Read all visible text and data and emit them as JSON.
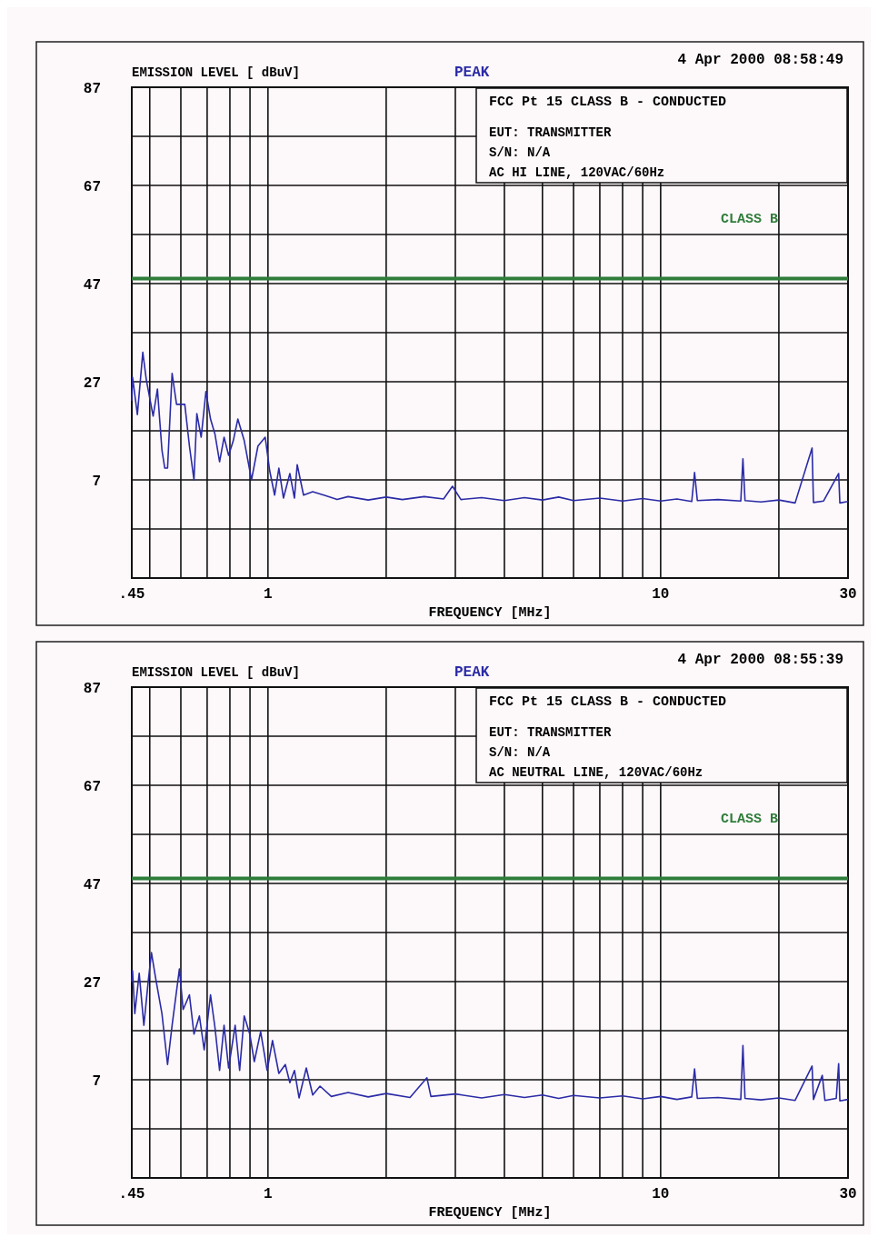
{
  "chart_data": [
    {
      "type": "line",
      "title": "4 Apr 2000   08:58:49",
      "ylabel": "EMISSION LEVEL [ dBuV]",
      "xlabel": "FREQUENCY [MHz]",
      "annotations": [
        "PEAK",
        "FCC Pt 15 CLASS B - CONDUCTED",
        "EUT: TRANSMITTER",
        "S/N: N/A",
        "AC HI LINE,     120VAC/60Hz"
      ],
      "log": "x",
      "grid": true,
      "xlim": [
        0.45,
        30
      ],
      "ylim": [
        -13,
        87
      ],
      "xticks": [
        {
          "value": 0.45,
          "label": ".45"
        },
        {
          "value": 0.5,
          "label": null
        },
        {
          "value": 0.6,
          "label": null
        },
        {
          "value": 0.7,
          "label": null
        },
        {
          "value": 0.8,
          "label": null
        },
        {
          "value": 0.9,
          "label": null
        },
        1,
        {
          "value": 2,
          "label": null
        },
        {
          "value": 3,
          "label": null
        },
        {
          "value": 4,
          "label": null
        },
        {
          "value": 5,
          "label": null
        },
        {
          "value": 6,
          "label": null
        },
        {
          "value": 7,
          "label": null
        },
        {
          "value": 8,
          "label": null
        },
        {
          "value": 9,
          "label": null
        },
        10,
        {
          "value": 20,
          "label": null
        },
        30
      ],
      "yticks": [
        {
          "value": -3,
          "label": null
        },
        7,
        {
          "value": 17,
          "label": null
        },
        27,
        {
          "value": 37,
          "label": null
        },
        47,
        {
          "value": 57,
          "label": null
        },
        67,
        {
          "value": 77,
          "label": null
        },
        87
      ],
      "ref_lines": [
        {
          "axis": "y",
          "value": 48,
          "label": "CLASS B",
          "color": "#2e7d3a"
        }
      ],
      "series": [
        {
          "color": "#2b2ba6",
          "x": [
            0.45,
            0.452,
            0.465,
            0.48,
            0.49,
            0.51,
            0.523,
            0.537,
            0.546,
            0.555,
            0.57,
            0.585,
            0.614,
            0.631,
            0.648,
            0.659,
            0.676,
            0.695,
            0.714,
            0.733,
            0.753,
            0.773,
            0.794,
            0.816,
            0.838,
            0.87,
            0.908,
            0.943,
            0.984,
            1.01,
            1.04,
            1.066,
            1.095,
            1.137,
            1.168,
            1.187,
            1.232,
            1.3,
            1.4,
            1.5,
            1.6,
            1.8,
            2.0,
            2.2,
            2.5,
            2.8,
            2.95,
            3.1,
            3.5,
            4,
            4.5,
            5,
            5.5,
            6,
            7,
            8,
            9,
            10,
            11,
            12,
            12.2,
            12.4,
            14,
            16,
            16.2,
            16.4,
            18,
            20,
            22,
            24.3,
            24.5,
            26,
            28.4,
            28.6,
            30
          ],
          "values": [
            23.1,
            27.9,
            20.3,
            33,
            27.4,
            20,
            25.5,
            13.1,
            9.4,
            9.4,
            28.7,
            22.4,
            22.4,
            13.9,
            7,
            20.5,
            15.7,
            25,
            19.4,
            16.3,
            10.7,
            15.7,
            12,
            15,
            19.4,
            15,
            7,
            13.9,
            15.7,
            8.9,
            3.9,
            9.4,
            3.3,
            8.3,
            3.3,
            10.1,
            3.9,
            4.6,
            3.8,
            3.0,
            3.6,
            2.9,
            3.5,
            3.0,
            3.6,
            3.1,
            5.7,
            3.0,
            3.4,
            2.8,
            3.4,
            2.9,
            3.5,
            2.8,
            3.3,
            2.7,
            3.2,
            2.7,
            3.1,
            2.6,
            8.5,
            2.8,
            3.0,
            2.7,
            11.3,
            2.8,
            2.5,
            2.9,
            2.3,
            13.5,
            2.4,
            2.7,
            8.3,
            2.3,
            2.6
          ]
        }
      ]
    },
    {
      "type": "line",
      "title": "4 Apr 2000   08:55:39",
      "ylabel": "EMISSION LEVEL [ dBuV]",
      "xlabel": "FREQUENCY [MHz]",
      "annotations": [
        "PEAK",
        "FCC Pt 15 CLASS B - CONDUCTED",
        "EUT: TRANSMITTER",
        "S/N: N/A",
        "AC NEUTRAL LINE, 120VAC/60Hz"
      ],
      "log": "x",
      "grid": true,
      "xlim": [
        0.45,
        30
      ],
      "ylim": [
        -13,
        87
      ],
      "xticks": [
        {
          "value": 0.45,
          "label": ".45"
        },
        {
          "value": 0.5,
          "label": null
        },
        {
          "value": 0.6,
          "label": null
        },
        {
          "value": 0.7,
          "label": null
        },
        {
          "value": 0.8,
          "label": null
        },
        {
          "value": 0.9,
          "label": null
        },
        1,
        {
          "value": 2,
          "label": null
        },
        {
          "value": 3,
          "label": null
        },
        {
          "value": 4,
          "label": null
        },
        {
          "value": 5,
          "label": null
        },
        {
          "value": 6,
          "label": null
        },
        {
          "value": 7,
          "label": null
        },
        {
          "value": 8,
          "label": null
        },
        {
          "value": 9,
          "label": null
        },
        10,
        {
          "value": 20,
          "label": null
        },
        30
      ],
      "yticks": [
        {
          "value": -3,
          "label": null
        },
        7,
        {
          "value": 17,
          "label": null
        },
        27,
        {
          "value": 37,
          "label": null
        },
        47,
        {
          "value": 57,
          "label": null
        },
        67,
        {
          "value": 77,
          "label": null
        },
        87
      ],
      "ref_lines": [
        {
          "axis": "y",
          "value": 48,
          "label": "CLASS B",
          "color": "#2e7d3a"
        }
      ],
      "series": [
        {
          "color": "#2b2ba6",
          "x": [
            0.45,
            0.452,
            0.458,
            0.47,
            0.483,
            0.496,
            0.505,
            0.517,
            0.537,
            0.555,
            0.57,
            0.595,
            0.608,
            0.631,
            0.648,
            0.669,
            0.688,
            0.714,
            0.733,
            0.753,
            0.773,
            0.794,
            0.825,
            0.847,
            0.87,
            0.899,
            0.923,
            0.958,
            0.995,
            1.027,
            1.066,
            1.107,
            1.137,
            1.168,
            1.2,
            1.252,
            1.3,
            1.357,
            1.45,
            1.6,
            1.8,
            2.0,
            2.3,
            2.54,
            2.6,
            3,
            3.5,
            4,
            4.5,
            5,
            5.5,
            6,
            7,
            8,
            9,
            10,
            11,
            12,
            12.2,
            12.4,
            14,
            16,
            16.2,
            16.4,
            18,
            20,
            22,
            24.3,
            24.5,
            25.8,
            26.2,
            28,
            28.4,
            28.6,
            30
          ],
          "values": [
            27,
            29.2,
            20.5,
            28.7,
            18.1,
            27.4,
            32.9,
            27.9,
            20.5,
            10.1,
            18.1,
            29.6,
            21.3,
            24.3,
            16.3,
            20,
            13.1,
            24.3,
            17.6,
            8.9,
            18.1,
            9.4,
            18.1,
            8.9,
            20,
            16.3,
            10.7,
            16.8,
            8.9,
            15,
            8.3,
            10.1,
            6.4,
            8.9,
            3.3,
            9.4,
            3.9,
            5.7,
            3.6,
            4.4,
            3.5,
            4.2,
            3.4,
            7.4,
            3.6,
            4.1,
            3.3,
            4.0,
            3.4,
            3.9,
            3.2,
            3.8,
            3.3,
            3.7,
            3.1,
            3.6,
            3.0,
            3.5,
            9.2,
            3.2,
            3.4,
            3.0,
            14.0,
            3.2,
            2.9,
            3.3,
            2.8,
            9.8,
            3.0,
            7.9,
            2.8,
            3.2,
            10.3,
            2.7,
            3.0
          ]
        }
      ]
    }
  ]
}
